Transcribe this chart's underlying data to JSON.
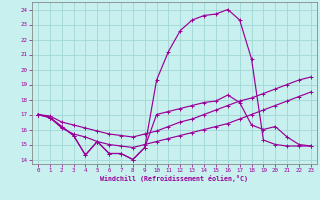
{
  "xlabel": "Windchill (Refroidissement éolien,°C)",
  "xlim": [
    -0.5,
    23.5
  ],
  "ylim": [
    13.7,
    24.5
  ],
  "xticks": [
    0,
    1,
    2,
    3,
    4,
    5,
    6,
    7,
    8,
    9,
    10,
    11,
    12,
    13,
    14,
    15,
    16,
    17,
    18,
    19,
    20,
    21,
    22,
    23
  ],
  "yticks": [
    14,
    15,
    16,
    17,
    18,
    19,
    20,
    21,
    22,
    23,
    24
  ],
  "bg_color": "#c8f0ee",
  "grid_color": "#a0d8d5",
  "line_color": "#990099",
  "curve1_x": [
    0,
    1,
    2,
    3,
    4,
    5,
    6,
    7,
    8,
    9,
    10,
    11,
    12,
    13,
    14,
    15,
    16,
    17,
    18,
    19,
    20,
    21,
    22,
    23
  ],
  "curve1_y": [
    17.0,
    16.8,
    16.2,
    15.6,
    14.3,
    15.2,
    14.4,
    14.4,
    14.0,
    14.8,
    19.3,
    21.2,
    22.6,
    23.3,
    23.6,
    23.7,
    24.0,
    23.3,
    20.7,
    15.3,
    15.0,
    14.9,
    14.9,
    14.9
  ],
  "curve2_x": [
    0,
    1,
    2,
    3,
    4,
    5,
    6,
    7,
    8,
    9,
    10,
    11,
    12,
    13,
    14,
    15,
    16,
    17,
    18,
    19,
    20,
    21,
    22,
    23
  ],
  "curve2_y": [
    17.0,
    16.8,
    16.2,
    15.6,
    14.3,
    15.2,
    14.4,
    14.4,
    14.0,
    14.8,
    17.0,
    17.2,
    17.4,
    17.6,
    17.8,
    17.9,
    18.3,
    17.8,
    16.3,
    16.0,
    16.2,
    15.5,
    15.0,
    14.9
  ],
  "curve3_x": [
    0,
    1,
    2,
    3,
    4,
    5,
    6,
    7,
    8,
    9,
    10,
    11,
    12,
    13,
    14,
    15,
    16,
    17,
    18,
    19,
    20,
    21,
    22,
    23
  ],
  "curve3_y": [
    17.0,
    16.9,
    16.5,
    16.3,
    16.1,
    15.9,
    15.7,
    15.6,
    15.5,
    15.7,
    15.9,
    16.2,
    16.5,
    16.7,
    17.0,
    17.3,
    17.6,
    17.9,
    18.1,
    18.4,
    18.7,
    19.0,
    19.3,
    19.5
  ],
  "curve4_x": [
    0,
    1,
    2,
    3,
    4,
    5,
    6,
    7,
    8,
    9,
    10,
    11,
    12,
    13,
    14,
    15,
    16,
    17,
    18,
    19,
    20,
    21,
    22,
    23
  ],
  "curve4_y": [
    17.0,
    16.8,
    16.1,
    15.7,
    15.5,
    15.2,
    15.0,
    14.9,
    14.8,
    15.0,
    15.2,
    15.4,
    15.6,
    15.8,
    16.0,
    16.2,
    16.4,
    16.7,
    17.0,
    17.3,
    17.6,
    17.9,
    18.2,
    18.5
  ]
}
